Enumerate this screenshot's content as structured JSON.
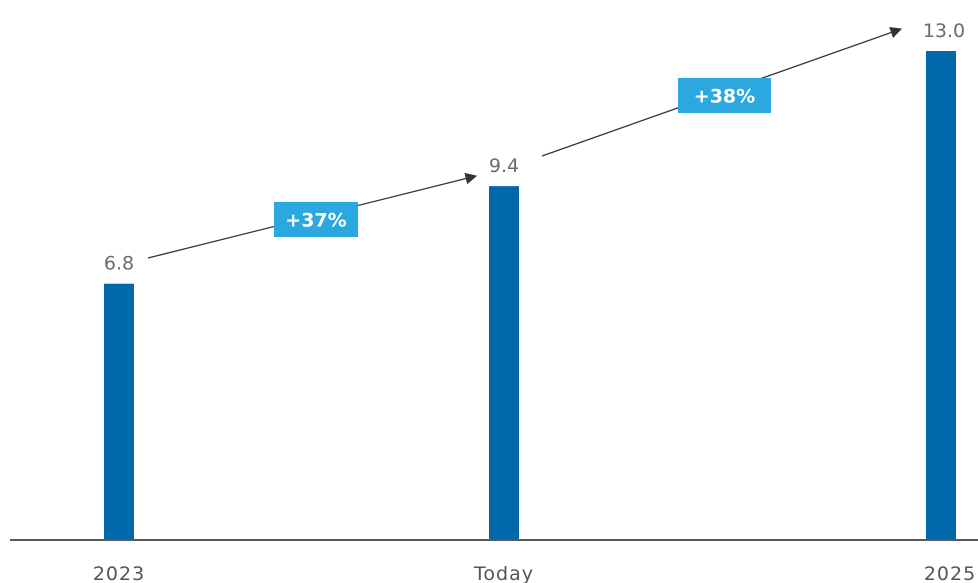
{
  "chart_data": {
    "type": "bar",
    "categories": [
      "2023",
      "Today",
      "2025"
    ],
    "values": [
      6.8,
      9.4,
      13.0
    ],
    "value_labels": [
      "6.8",
      "9.4",
      "13.0"
    ],
    "title": "",
    "xlabel": "",
    "ylabel": "",
    "ylim": [
      0,
      13.0
    ],
    "grid": false,
    "legend": "none",
    "growth_annotations": [
      {
        "from": "2023",
        "to": "Today",
        "label": "+37%"
      },
      {
        "from": "Today",
        "to": "2025",
        "label": "+38%"
      }
    ]
  },
  "colors": {
    "bar": "#0068ab",
    "badge": "#2aa8df",
    "badge_text": "#ffffff",
    "axis": "#222222",
    "arrow": "#333333",
    "value_text": "#6b6b6b",
    "category_text": "#555555"
  }
}
